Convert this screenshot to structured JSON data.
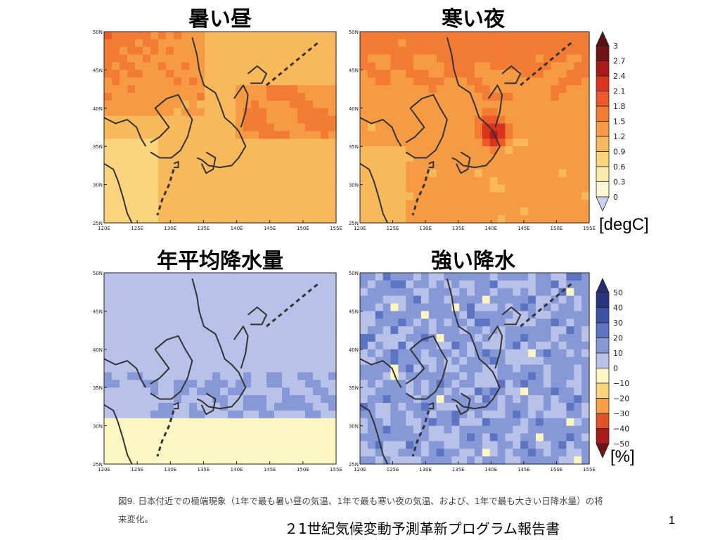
{
  "panels": [
    {
      "id": "p1",
      "title": "暑い昼",
      "scale": "temp"
    },
    {
      "id": "p2",
      "title": "寒い夜",
      "scale": "temp"
    },
    {
      "id": "p3",
      "title": "年平均降水量",
      "scale": "prec"
    },
    {
      "id": "p4",
      "title": "強い降水",
      "scale": "prec"
    }
  ],
  "axes": {
    "x_ticks": [
      "120E",
      "125E",
      "130E",
      "135E",
      "140E",
      "145E",
      "150E",
      "155E"
    ],
    "y_ticks": [
      "50N",
      "45N",
      "40N",
      "35N",
      "30N",
      "25N"
    ]
  },
  "colorbars": {
    "temp": {
      "unit": "[degC]",
      "labels": [
        "3",
        "2.7",
        "2.4",
        "2.1",
        "1.8",
        "1.5",
        "1.2",
        "0.9",
        "0.6",
        "0.3",
        "0"
      ],
      "colors": [
        "#6e1414",
        "#a81c1c",
        "#d8341e",
        "#ec5a2a",
        "#f27b35",
        "#f69b44",
        "#f8b85c",
        "#fbd47e",
        "#fde9aa",
        "#fef7d6"
      ],
      "arrow_low": "#c9d3ee",
      "arrow_high": "#5a1010"
    },
    "prec": {
      "unit": "[%]",
      "labels": [
        "50",
        "40",
        "30",
        "20",
        "10",
        "0",
        "−10",
        "−20",
        "−30",
        "−40",
        "−50"
      ],
      "colors": [
        "#2b357e",
        "#3f52a8",
        "#5d74c3",
        "#8798d6",
        "#b8c1e8",
        "#fdf6c2",
        "#fbd47e",
        "#f6a04a",
        "#e0532a",
        "#a81c1c"
      ],
      "arrow_low": "#6e1414",
      "arrow_high": "#252d70"
    }
  },
  "caption": "図9. 日本付近での極端現象（1年で最も暑い昼の気温、1年で最も寒い夜の気温、および、1年で最も大きい日降水量）の将来変化。",
  "footer": "２1世紀気候変動予測革新プログラム報告書",
  "page_number": "1"
}
